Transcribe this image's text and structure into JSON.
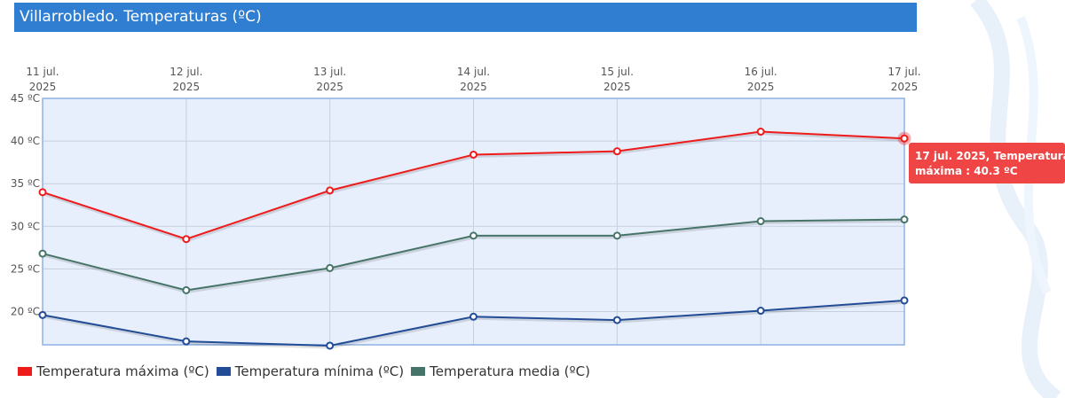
{
  "header": {
    "title": "Villarrobledo. Temperaturas (ºC)"
  },
  "tooltip": {
    "text": "17 jul. 2025, Temperatura máxima : 40.3 ºC"
  },
  "colors": {
    "title_bg": "#2f7ed2",
    "plot_bg": "#e7effd",
    "plot_border": "#8fb1e3",
    "max": "#ee1b1b",
    "min": "#224c95",
    "media": "#477468",
    "tooltip_bg": "#ef4545"
  },
  "chart_data": {
    "type": "line",
    "categories": [
      [
        "11 jul.",
        "2025"
      ],
      [
        "12 jul.",
        "2025"
      ],
      [
        "13 jul.",
        "2025"
      ],
      [
        "14 jul.",
        "2025"
      ],
      [
        "15 jul.",
        "2025"
      ],
      [
        "16 jul.",
        "2025"
      ],
      [
        "17 jul.",
        "2025"
      ]
    ],
    "yticks": [
      {
        "value": 45,
        "label": "45 ºC"
      },
      {
        "value": 40,
        "label": "40 ºC"
      },
      {
        "value": 35,
        "label": "35 ºC"
      },
      {
        "value": 30,
        "label": "30 ºC"
      },
      {
        "value": 25,
        "label": "25 ºC"
      },
      {
        "value": 20,
        "label": "20 ºC"
      }
    ],
    "ylim": [
      16.1,
      45
    ],
    "grid": true,
    "legend_position": "bottom-left",
    "series": [
      {
        "key": "max",
        "name": "Temperatura máxima (ºC)",
        "color": "#ee1b1b",
        "values": [
          34.0,
          28.5,
          34.2,
          38.4,
          38.8,
          41.1,
          40.3
        ]
      },
      {
        "key": "min",
        "name": "Temperatura mínima (ºC)",
        "color": "#224c95",
        "values": [
          19.6,
          16.5,
          16.0,
          19.4,
          19.0,
          20.1,
          21.3
        ]
      },
      {
        "key": "media",
        "name": "Temperatura media (ºC)",
        "color": "#477468",
        "values": [
          26.8,
          22.5,
          25.1,
          28.9,
          28.9,
          30.6,
          30.8
        ]
      }
    ],
    "highlight": {
      "series": "max",
      "index": 6
    }
  }
}
